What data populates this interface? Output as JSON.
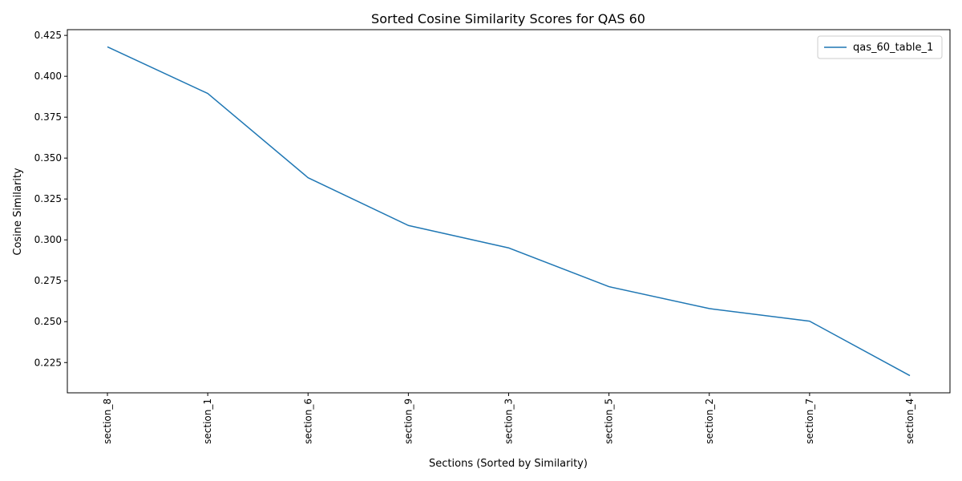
{
  "chart_data": {
    "type": "line",
    "title": "Sorted Cosine Similarity Scores for QAS 60",
    "xlabel": "Sections (Sorted by Similarity)",
    "ylabel": "Cosine Similarity",
    "categories": [
      "section_8",
      "section_1",
      "section_6",
      "section_9",
      "section_3",
      "section_5",
      "section_2",
      "section_7",
      "section_4"
    ],
    "series": [
      {
        "name": "qas_60_table_1",
        "values": [
          0.418,
          0.3895,
          0.338,
          0.3088,
          0.2951,
          0.2714,
          0.258,
          0.2503,
          0.217
        ],
        "color": "#1f77b4"
      }
    ],
    "yticks": [
      0.225,
      0.25,
      0.275,
      0.3,
      0.325,
      0.35,
      0.375,
      0.4,
      0.425
    ],
    "ytick_labels": [
      "0.225",
      "0.250",
      "0.275",
      "0.300",
      "0.325",
      "0.350",
      "0.375",
      "0.400",
      "0.425"
    ],
    "ylim": [
      0.2065,
      0.4285
    ],
    "grid": false,
    "legend_position": "top-right"
  }
}
